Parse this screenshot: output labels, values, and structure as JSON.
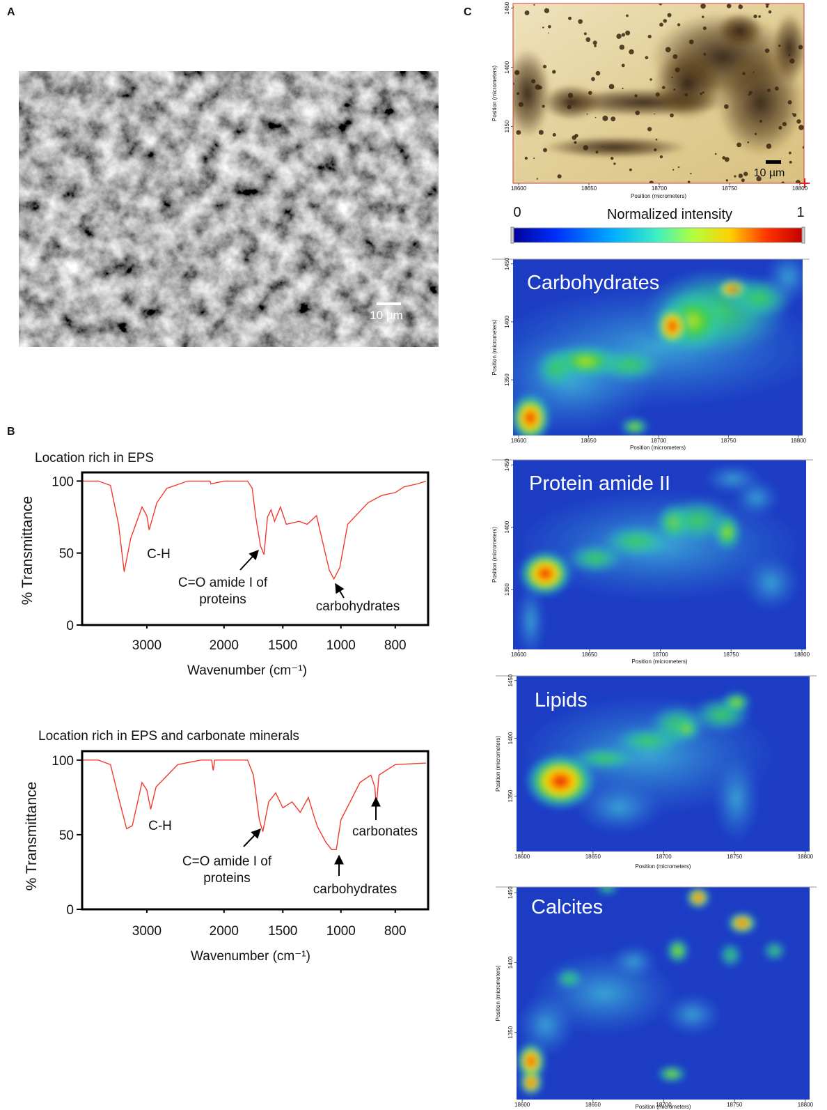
{
  "panel_labels": [
    "A",
    "B",
    "C"
  ],
  "sem": {
    "scale_bar": "10 µm"
  },
  "chart_data": [
    {
      "type": "line",
      "title": "Location rich in EPS",
      "xlabel": "Wavenumber (cm⁻¹)",
      "ylabel": "% Transmittance",
      "x": [
        3800,
        3600,
        3450,
        3350,
        3280,
        3200,
        3060,
        3000,
        2970,
        2870,
        2740,
        2470,
        2180,
        2170,
        2000,
        1800,
        1760,
        1730,
        1690,
        1660,
        1630,
        1600,
        1570,
        1520,
        1470,
        1360,
        1290,
        1210,
        1170,
        1100,
        1060,
        1010,
        975,
        900,
        850,
        800,
        760,
        700,
        660
      ],
      "series": [
        {
          "color": "#f03a2e",
          "values": [
            100,
            100,
            97,
            70,
            37,
            60,
            82,
            76,
            66,
            85,
            95,
            100,
            100,
            98,
            100,
            100,
            95,
            75,
            55,
            49,
            75,
            80,
            72,
            82,
            70,
            72,
            70,
            76,
            62,
            38,
            32,
            40,
            70,
            85,
            90,
            92,
            96,
            98,
            100
          ]
        }
      ],
      "xlim": [
        3800,
        650
      ],
      "ylim": [
        0,
        106
      ],
      "xticks": [
        3000,
        2000,
        1500,
        1000,
        800
      ],
      "yticks": [
        0,
        50,
        100
      ],
      "annotations": [
        [
          "C-H"
        ],
        [
          "C=O amide I of",
          "proteins"
        ],
        [
          "carbohydrates"
        ]
      ]
    },
    {
      "type": "line",
      "title": "Location rich in EPS and carbonate minerals",
      "xlabel": "Wavenumber (cm⁻¹)",
      "ylabel": "% Transmittance",
      "x": [
        3800,
        3600,
        3450,
        3350,
        3250,
        3180,
        3060,
        3000,
        2950,
        2880,
        2600,
        2300,
        2160,
        2140,
        2120,
        1800,
        1750,
        1700,
        1670,
        1620,
        1560,
        1500,
        1420,
        1350,
        1280,
        1230,
        1200,
        1130,
        1080,
        1040,
        1000,
        930,
        890,
        875,
        870,
        860,
        800,
        660
      ],
      "series": [
        {
          "color": "#f03a2e",
          "values": [
            100,
            100,
            97,
            75,
            54,
            56,
            85,
            80,
            67,
            82,
            97,
            100,
            100,
            93,
            100,
            100,
            90,
            60,
            52,
            72,
            78,
            68,
            72,
            65,
            75,
            62,
            55,
            45,
            40,
            40,
            60,
            85,
            90,
            82,
            68,
            90,
            97,
            98
          ]
        }
      ],
      "xlim": [
        3800,
        650
      ],
      "ylim": [
        0,
        106
      ],
      "xticks": [
        3000,
        2000,
        1500,
        1000,
        800
      ],
      "yticks": [
        0,
        50,
        100
      ],
      "annotations": [
        [
          "C-H"
        ],
        [
          "C=O amide I of",
          "proteins"
        ],
        [
          "carbohydrates"
        ],
        [
          "carbonates"
        ]
      ]
    }
  ],
  "maps": {
    "xlabel": "Position (micrometers)",
    "ylabel": "Position (micrometers)",
    "xlim": [
      18596,
      18803
    ],
    "ylim": [
      1302,
      1454
    ],
    "xticks": [
      18600,
      18650,
      18700,
      18750,
      18800
    ],
    "yticks": [
      1350,
      1400,
      1450
    ],
    "photo": {
      "scale_bar": "10 µm"
    },
    "colorbar": {
      "label": "Normalized intensity",
      "ticks": [
        0,
        1
      ]
    },
    "panels": [
      {
        "label": "Carbohydrates"
      },
      {
        "label": "Protein amide II"
      },
      {
        "label": "Lipids"
      },
      {
        "label": "Calcites"
      }
    ]
  }
}
